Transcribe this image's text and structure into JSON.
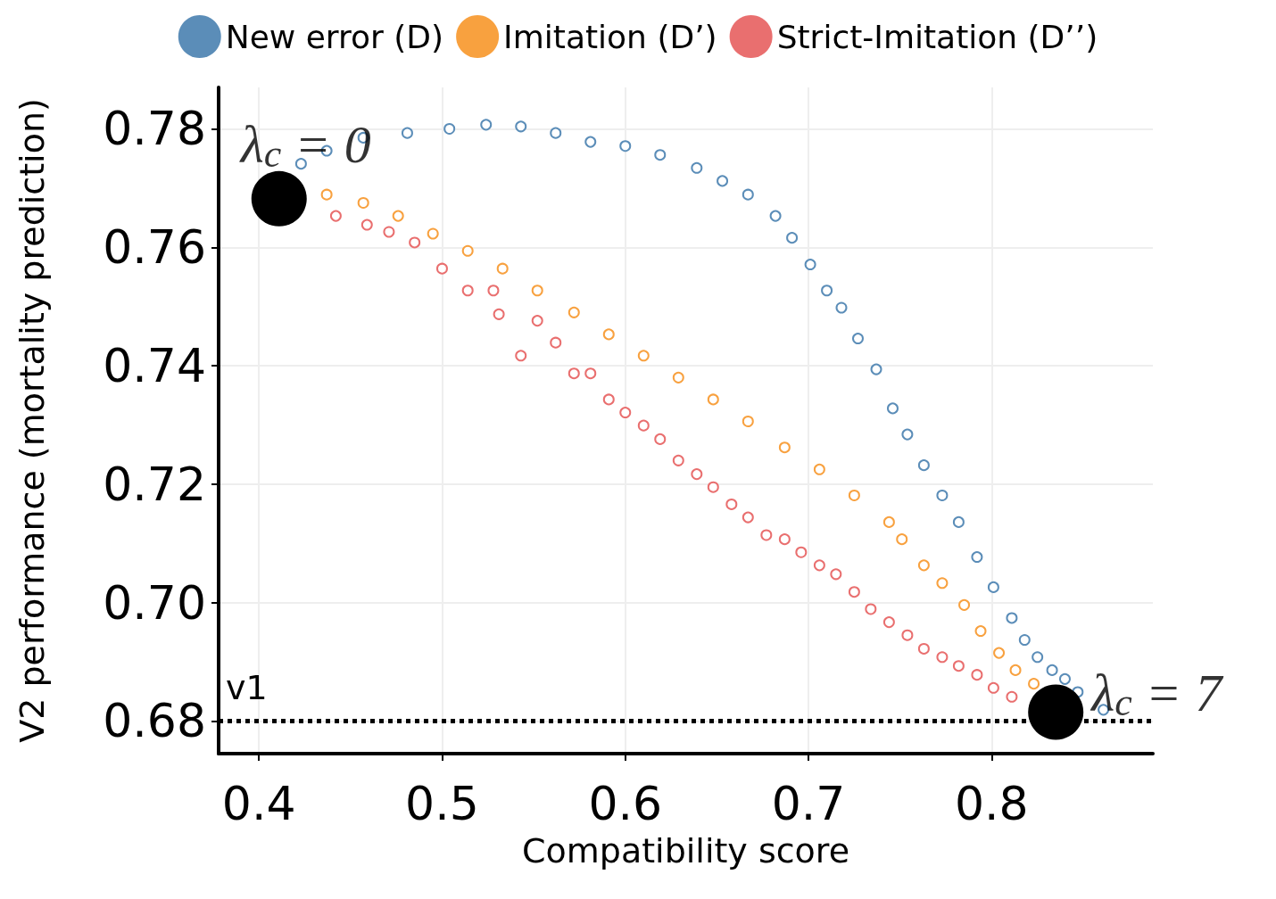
{
  "chart_data": {
    "type": "scatter",
    "xlabel": "Compatibility score",
    "ylabel": "V2 performance (mortality prediction)",
    "xlim": [
      0.378,
      0.888
    ],
    "ylim": [
      0.6745,
      0.787
    ],
    "xticks": [
      0.4,
      0.5,
      0.6,
      0.7,
      0.8
    ],
    "yticks": [
      0.68,
      {
        "value": 0.7,
        "label": "0.70"
      },
      0.72,
      0.74,
      0.76,
      0.78
    ],
    "grid": true,
    "legend": "top",
    "marker": "circle",
    "series": [
      {
        "name": "New error (D)",
        "color": "#5b8db8",
        "x": [
          0.423,
          0.437,
          0.457,
          0.481,
          0.504,
          0.524,
          0.543,
          0.562,
          0.581,
          0.6,
          0.619,
          0.639,
          0.653,
          0.667,
          0.682,
          0.691,
          0.701,
          0.71,
          0.718,
          0.727,
          0.737,
          0.746,
          0.754,
          0.763,
          0.773,
          0.782,
          0.792,
          0.801,
          0.811,
          0.818,
          0.825,
          0.833,
          0.84,
          0.847,
          0.861
        ],
        "values": [
          0.7741,
          0.7763,
          0.7785,
          0.7793,
          0.78,
          0.7807,
          0.7804,
          0.7793,
          0.7778,
          0.7771,
          0.7756,
          0.7734,
          0.7712,
          0.7689,
          0.7653,
          0.7616,
          0.7571,
          0.7527,
          0.7498,
          0.7446,
          0.7394,
          0.7328,
          0.7284,
          0.7232,
          0.7181,
          0.7136,
          0.7077,
          0.7026,
          0.6974,
          0.6937,
          0.6908,
          0.6886,
          0.6871,
          0.6849,
          0.6819
        ]
      },
      {
        "name": "Imitation (D’)",
        "color": "#f8a13f",
        "x": [
          0.437,
          0.457,
          0.476,
          0.495,
          0.514,
          0.533,
          0.552,
          0.572,
          0.591,
          0.61,
          0.629,
          0.648,
          0.667,
          0.687,
          0.706,
          0.725,
          0.744,
          0.751,
          0.763,
          0.773,
          0.785,
          0.794,
          0.804,
          0.813,
          0.823
        ],
        "values": [
          0.7689,
          0.7675,
          0.7653,
          0.7623,
          0.7594,
          0.7564,
          0.7527,
          0.749,
          0.7453,
          0.7417,
          0.738,
          0.7343,
          0.7306,
          0.7262,
          0.7225,
          0.7181,
          0.7136,
          0.7107,
          0.7063,
          0.7033,
          0.6996,
          0.6952,
          0.6915,
          0.6886,
          0.6863
        ]
      },
      {
        "name": "Strict-Imitation (D’’)",
        "color": "#e96f6f",
        "x": [
          0.442,
          0.459,
          0.471,
          0.485,
          0.5,
          0.514,
          0.528,
          0.531,
          0.543,
          0.552,
          0.562,
          0.572,
          0.581,
          0.591,
          0.6,
          0.61,
          0.619,
          0.629,
          0.639,
          0.648,
          0.658,
          0.667,
          0.677,
          0.687,
          0.696,
          0.706,
          0.715,
          0.725,
          0.734,
          0.744,
          0.754,
          0.763,
          0.773,
          0.782,
          0.792,
          0.801,
          0.811
        ],
        "values": [
          0.7653,
          0.7638,
          0.7626,
          0.7608,
          0.7564,
          0.7527,
          0.7527,
          0.7487,
          0.7417,
          0.7476,
          0.7439,
          0.7387,
          0.7387,
          0.7343,
          0.7321,
          0.7299,
          0.7276,
          0.724,
          0.7217,
          0.7195,
          0.7166,
          0.7144,
          0.7114,
          0.7107,
          0.7085,
          0.7063,
          0.7048,
          0.7018,
          0.6989,
          0.6967,
          0.6945,
          0.6922,
          0.6908,
          0.6893,
          0.6878,
          0.6856,
          0.6841
        ]
      },
      {
        "color": "#000000",
        "x": [
          0.411,
          0.835
        ],
        "values": [
          0.7682,
          0.6815
        ]
      }
    ],
    "ref_lines": [
      {
        "axis": "y",
        "value": 0.68,
        "label": "v1",
        "color": "#000000",
        "line_style": "dotted"
      }
    ],
    "annotations": [
      {
        "text": "λ$_{c}$ = 0",
        "x": 0.411,
        "y": 0.7682
      },
      {
        "text": "λ$_{c}$ = 7",
        "x": 0.835,
        "y": 0.6815
      }
    ]
  }
}
